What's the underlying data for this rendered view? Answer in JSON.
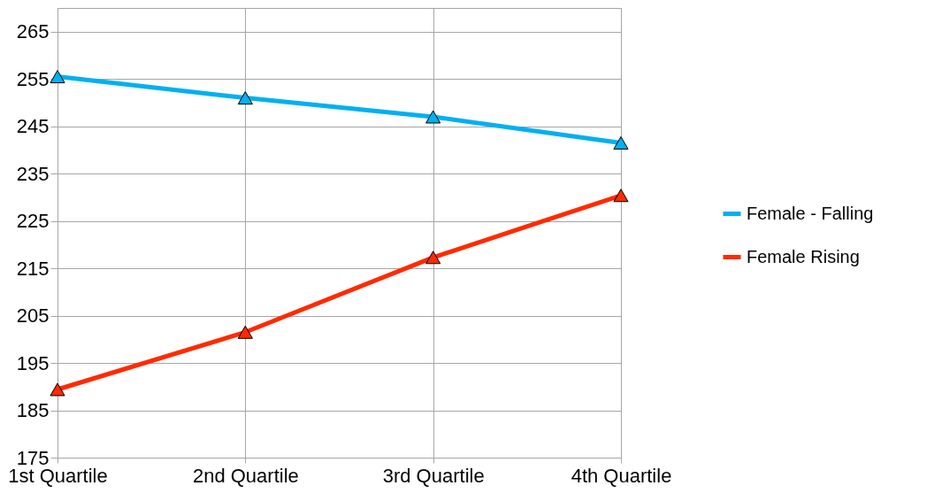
{
  "chart_data": {
    "type": "line",
    "categories": [
      "1st Quartile",
      "2nd Quartile",
      "3rd Quartile",
      "4th Quartile"
    ],
    "series": [
      {
        "name": "Female - Falling",
        "color": "#00b0f0",
        "values": [
          255.5,
          251,
          247,
          241.5
        ]
      },
      {
        "name": "Female Rising",
        "color": "#ff2a00",
        "values": [
          189.4,
          201.5,
          217.3,
          230.4
        ]
      }
    ],
    "ylim": [
      175,
      270
    ],
    "yticks": [
      175,
      185,
      195,
      205,
      215,
      225,
      235,
      245,
      255,
      265
    ],
    "grid": true,
    "legend": "right",
    "marker": "triangle",
    "line_style": "solid"
  }
}
